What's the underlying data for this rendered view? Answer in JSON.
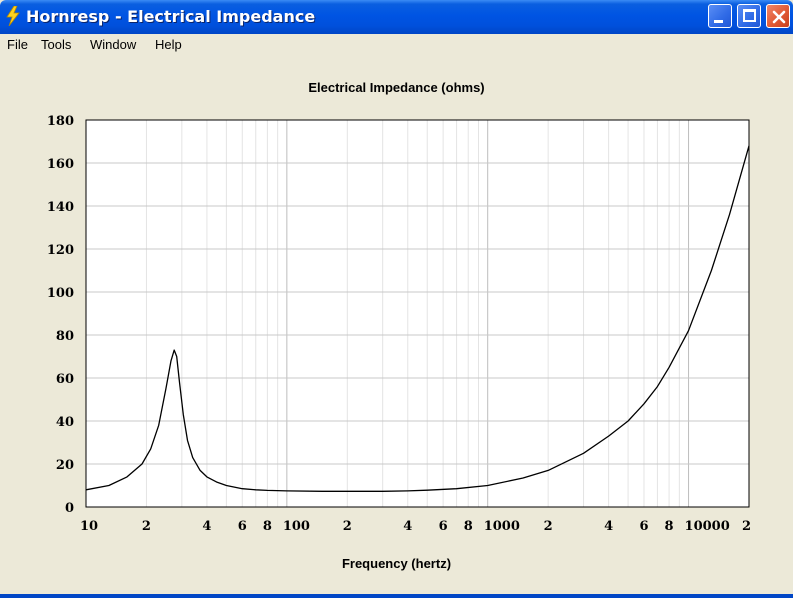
{
  "window": {
    "title": "Hornresp - Electrical Impedance",
    "icon": "lightning-bolt-icon",
    "title_bar_color": "#0054e3"
  },
  "menu": {
    "items": [
      "File",
      "Tools",
      "Window",
      "Help"
    ]
  },
  "chart_data": {
    "type": "line",
    "title": "Electrical Impedance (ohms)",
    "xlabel": "Frequency (hertz)",
    "ylabel": "",
    "x_scale": "log",
    "xlim": [
      10,
      20000
    ],
    "ylim": [
      0,
      180
    ],
    "grid": true,
    "line_color": "#000000",
    "y_ticks": [
      "0",
      "20",
      "40",
      "60",
      "80",
      "100",
      "120",
      "140",
      "160",
      "180"
    ],
    "x_tick_labels": [
      {
        "value": 10,
        "label": "10"
      },
      {
        "value": 20,
        "label": "2"
      },
      {
        "value": 40,
        "label": "4"
      },
      {
        "value": 60,
        "label": "6"
      },
      {
        "value": 80,
        "label": "8"
      },
      {
        "value": 100,
        "label": "100"
      },
      {
        "value": 200,
        "label": "2"
      },
      {
        "value": 400,
        "label": "4"
      },
      {
        "value": 600,
        "label": "6"
      },
      {
        "value": 800,
        "label": "8"
      },
      {
        "value": 1000,
        "label": "1000"
      },
      {
        "value": 2000,
        "label": "2"
      },
      {
        "value": 4000,
        "label": "4"
      },
      {
        "value": 6000,
        "label": "6"
      },
      {
        "value": 8000,
        "label": "8"
      },
      {
        "value": 10000,
        "label": "10000"
      },
      {
        "value": 20000,
        "label": "2"
      }
    ],
    "series": [
      {
        "x": [
          10,
          13,
          16,
          19,
          21,
          23,
          25,
          26.5,
          27.5,
          28.3,
          29.2,
          30.5,
          32,
          34,
          37,
          40,
          45,
          50,
          60,
          70,
          80,
          100,
          150,
          200,
          300,
          400,
          500,
          700,
          1000,
          1500,
          2000,
          3000,
          4000,
          5000,
          6000,
          7000,
          8000,
          10000,
          13000,
          16000,
          20000
        ],
        "y": [
          8,
          10,
          14,
          20,
          27,
          38,
          55,
          68,
          73,
          70,
          58,
          43,
          31,
          23,
          17,
          14,
          11.5,
          10,
          8.5,
          8,
          7.7,
          7.5,
          7.3,
          7.3,
          7.3,
          7.5,
          7.8,
          8.5,
          10,
          13.5,
          17,
          25,
          33,
          40,
          48,
          56,
          65,
          82,
          110,
          136,
          168
        ]
      }
    ]
  }
}
